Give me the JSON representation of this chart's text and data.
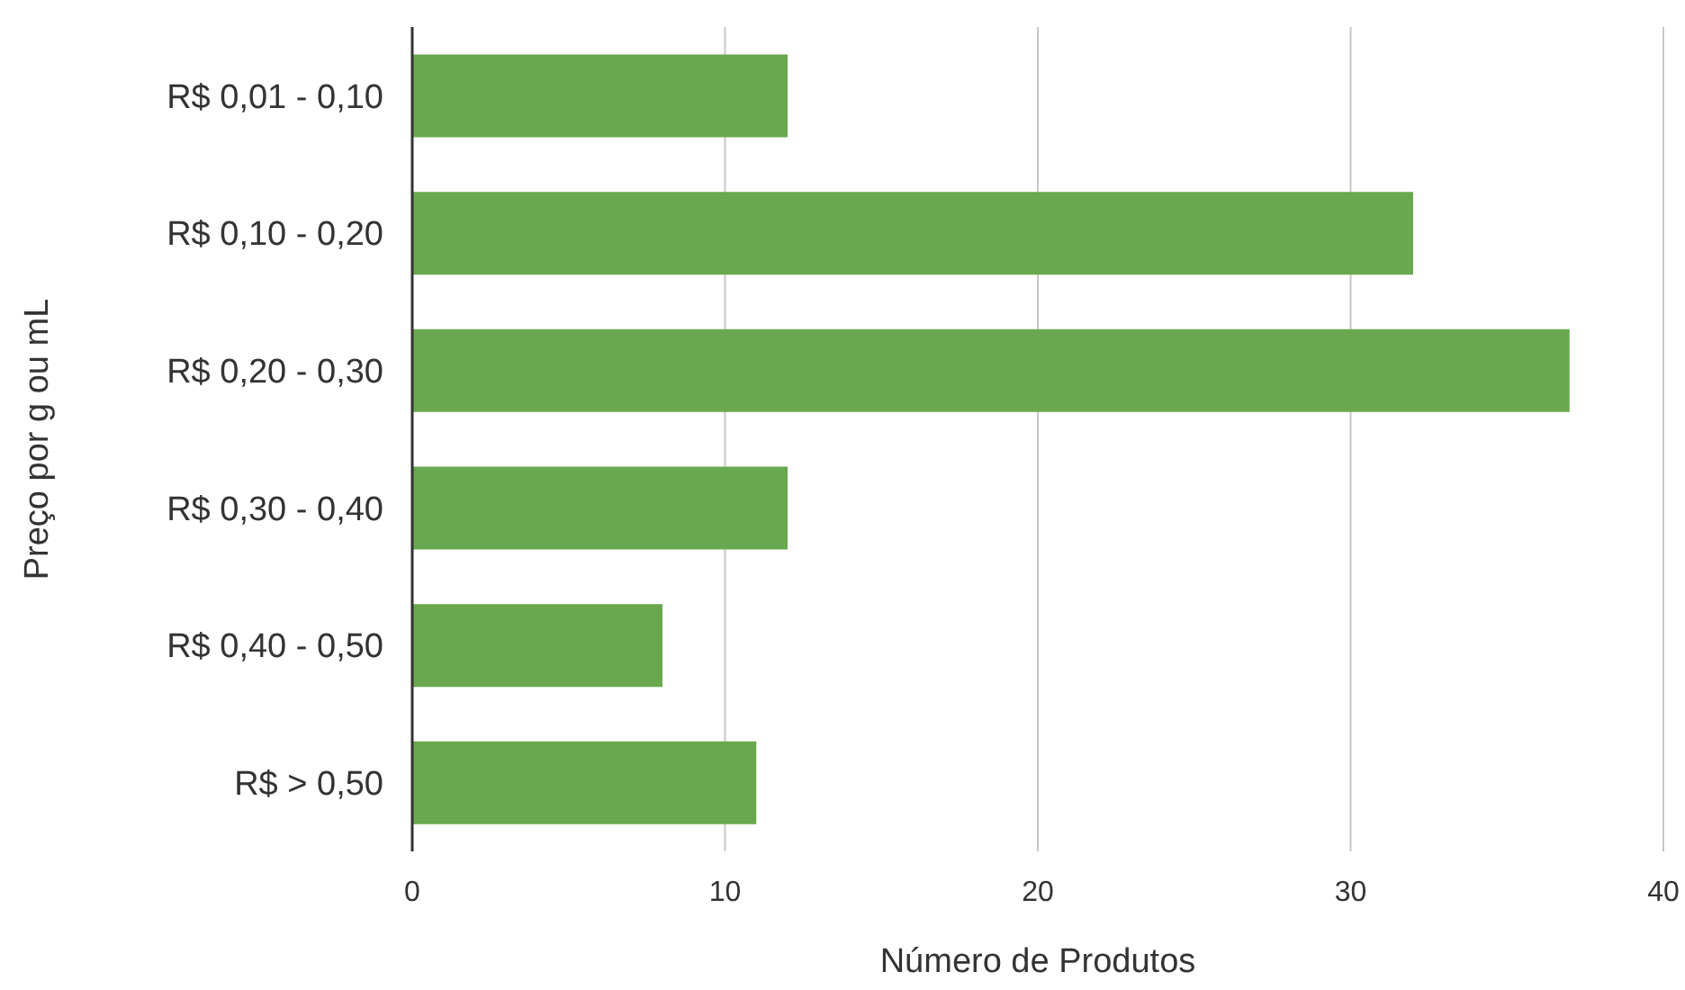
{
  "chart_data": {
    "type": "bar",
    "orientation": "horizontal",
    "xlabel": "Número de Produtos",
    "ylabel": "Preço por g ou mL",
    "categories": [
      "R$ 0,01 - 0,10",
      "R$ 0,10 - 0,20",
      "R$ 0,20 - 0,30",
      "R$ 0,30 - 0,40",
      "R$ 0,40 - 0,50",
      "R$ > 0,50"
    ],
    "values": [
      12,
      32,
      37,
      12,
      8,
      11
    ],
    "color": "#6aa84f",
    "xlim": [
      0,
      40
    ],
    "xticks": [
      0,
      10,
      20,
      30,
      40
    ],
    "grid": "x"
  }
}
